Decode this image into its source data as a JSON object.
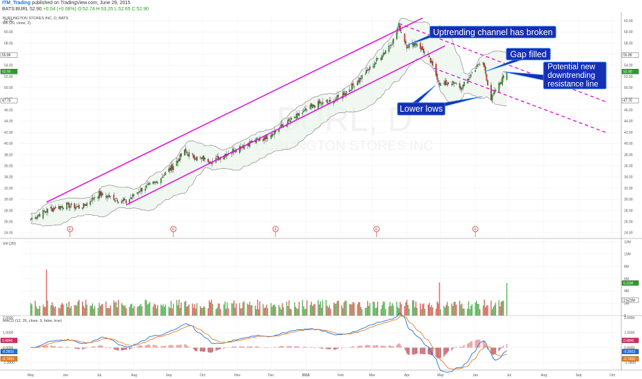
{
  "header": {
    "author": "ITM_Trading",
    "published": "published on TradingView.com, June 29, 2015",
    "symbol": "BATS:BURL",
    "price": "52.90",
    "change": "+0.04 (+0.08%)",
    "ohlc": "O:52.74 H:53.25 L:52.65 C:52.90"
  },
  "chart_data": [
    {
      "type": "candlestick",
      "title": "BURLINGTON STORES INC, D, BATS",
      "indicator": "BB (20, close, 2)",
      "watermark": {
        "symbol": "BURL, D",
        "name": "BURLINGTON STORES INC"
      },
      "x_ticks": [
        "May",
        "Jun",
        "Jul",
        "Aug",
        "Sep",
        "Oct",
        "Nov",
        "Dec",
        "2015",
        "Feb",
        "Mar",
        "Apr",
        "May",
        "Jun",
        "Jul",
        "Aug",
        "Sep",
        "Oct"
      ],
      "ylim": [
        23,
        63
      ],
      "y_ticks": [
        "62.00",
        "60.00",
        "58.00",
        "56.00",
        "54.00",
        "52.00",
        "50.00",
        "48.00",
        "46.00",
        "44.00",
        "42.00",
        "40.00",
        "38.00",
        "36.00",
        "34.00",
        "32.00",
        "30.00",
        "28.00",
        "26.00",
        "24.00"
      ],
      "price_badges": [
        {
          "label": "55.86",
          "value": 55.86,
          "color": "#ffffff"
        },
        {
          "label": "52.90",
          "value": 52.9,
          "color": "#2a9d2a"
        },
        {
          "label": "47.70",
          "value": 47.7,
          "color": "#ffffff"
        }
      ],
      "close_points": [
        [
          "2014-05-01",
          26.5
        ],
        [
          "2014-05-15",
          28.0
        ],
        [
          "2014-06-01",
          29.0
        ],
        [
          "2014-06-15",
          28.5
        ],
        [
          "2014-07-01",
          31.0
        ],
        [
          "2014-07-15",
          30.2
        ],
        [
          "2014-07-25",
          29.5
        ],
        [
          "2014-08-05",
          31.5
        ],
        [
          "2014-08-20",
          33.0
        ],
        [
          "2014-09-05",
          36.0
        ],
        [
          "2014-09-15",
          38.5
        ],
        [
          "2014-09-25",
          37.5
        ],
        [
          "2014-10-10",
          36.8
        ],
        [
          "2014-10-25",
          38.5
        ],
        [
          "2014-11-10",
          40.0
        ],
        [
          "2014-11-25",
          41.0
        ],
        [
          "2014-12-10",
          43.0
        ],
        [
          "2014-12-25",
          45.0
        ],
        [
          "2015-01-10",
          47.0
        ],
        [
          "2015-01-25",
          47.5
        ],
        [
          "2015-02-10",
          50.0
        ],
        [
          "2015-02-25",
          53.0
        ],
        [
          "2015-03-10",
          56.0
        ],
        [
          "2015-03-20",
          58.5
        ],
        [
          "2015-03-25",
          61.0
        ],
        [
          "2015-04-01",
          57.5
        ],
        [
          "2015-04-10",
          58.0
        ],
        [
          "2015-04-20",
          55.5
        ],
        [
          "2015-05-01",
          50.5
        ],
        [
          "2015-05-10",
          51.0
        ],
        [
          "2015-05-20",
          50.0
        ],
        [
          "2015-06-01",
          53.5
        ],
        [
          "2015-06-08",
          54.5
        ],
        [
          "2015-06-15",
          48.0
        ],
        [
          "2015-06-22",
          50.5
        ],
        [
          "2015-06-29",
          52.9
        ]
      ],
      "earnings_markers": [
        "2014-06-05",
        "2014-09-05",
        "2014-12-05",
        "2015-03-05",
        "2015-06-01"
      ],
      "earnings_label": "E",
      "lines": [
        {
          "name": "channel-upper",
          "from": [
            "2014-05-15",
            29.5
          ],
          "to": [
            "2015-04-15",
            62.5
          ]
        },
        {
          "name": "channel-lower",
          "from": [
            "2014-07-25",
            29.0
          ],
          "to": [
            "2015-05-05",
            57.5
          ]
        },
        {
          "name": "downtrend-upper",
          "from": [
            "2015-03-25",
            61.5
          ],
          "to": [
            "2015-09-25",
            47.5
          ],
          "dashed": true
        },
        {
          "name": "downtrend-lower",
          "from": [
            "2015-04-25",
            53.5
          ],
          "to": [
            "2015-09-25",
            42.0
          ],
          "dashed": true
        }
      ]
    },
    {
      "type": "bar",
      "title": "Vol (20)",
      "y_ticks": [
        "12M",
        "10M",
        "8M",
        "6M",
        "4M",
        "2M",
        "0"
      ],
      "ylim": [
        0,
        12
      ],
      "badges": [
        {
          "label": "5.31M",
          "value": 5.31,
          "color": "#2a9d2a"
        },
        {
          "label": "2.521M",
          "value": 2.521,
          "color": "#ffffff"
        }
      ]
    },
    {
      "type": "line",
      "title": "MACD (12, 26, close, 9, false, true)",
      "y_ticks": [
        "2.0000",
        "1.0000",
        "0.0000",
        "-1.0000"
      ],
      "ylim": [
        -1.5,
        2.1
      ],
      "badges": [
        {
          "label": "0.4846",
          "value": 0.4846,
          "color": "#e0245e"
        },
        {
          "label": "-0.2603",
          "value": -0.2603,
          "color": "#1e6fd9"
        },
        {
          "label": "-0.7450",
          "value": -0.745,
          "color": "#e67e22"
        }
      ]
    }
  ],
  "callouts": [
    {
      "text": "Uptrending channel has broken"
    },
    {
      "text": "Gap filled"
    },
    {
      "lines": [
        "Potential new",
        "downtrending",
        "resistance line"
      ]
    },
    {
      "text": "Lower lows"
    }
  ]
}
